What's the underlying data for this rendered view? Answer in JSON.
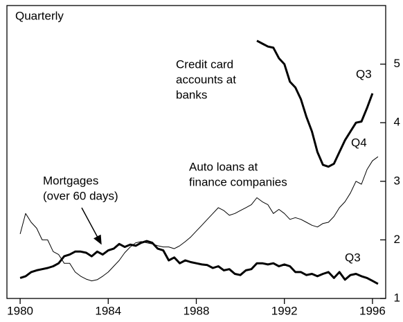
{
  "chart_data": {
    "type": "line",
    "annotations": [
      {
        "lines": [
          "Quarterly"
        ]
      },
      {
        "lines": [
          "Credit card",
          "accounts at",
          "banks"
        ]
      },
      {
        "lines": [
          "Q3"
        ]
      },
      {
        "lines": [
          "Auto loans at",
          "finance companies"
        ]
      },
      {
        "lines": [
          "Q4"
        ]
      },
      {
        "lines": [
          "Mortgages",
          "(over 60 days)"
        ]
      },
      {
        "lines": [
          "Q3"
        ]
      }
    ],
    "xlim": [
      1979.4,
      1996.6
    ],
    "xticks": [
      1980,
      1984,
      1988,
      1992,
      1996
    ],
    "ylim": [
      1,
      6
    ],
    "yticks": [
      1,
      2,
      3,
      4,
      5
    ],
    "series": [
      {
        "color": "#000000",
        "width": 3,
        "x": [
          1990.75,
          1991,
          1991.25,
          1991.5,
          1991.75,
          1992,
          1992.25,
          1992.5,
          1992.75,
          1993,
          1993.25,
          1993.5,
          1993.75,
          1994,
          1994.25,
          1994.5,
          1994.75,
          1995,
          1995.25,
          1995.5,
          1995.75,
          1996
        ],
        "values": [
          5.4,
          5.35,
          5.3,
          5.28,
          5.1,
          5.0,
          4.7,
          4.6,
          4.4,
          4.1,
          3.85,
          3.5,
          3.28,
          3.25,
          3.3,
          3.5,
          3.7,
          3.85,
          4.0,
          4.02,
          4.25,
          4.5
        ]
      },
      {
        "color": "#000000",
        "width": 1,
        "x": [
          1980,
          1980.25,
          1980.5,
          1980.75,
          1981,
          1981.25,
          1981.5,
          1981.75,
          1982,
          1982.25,
          1982.5,
          1982.75,
          1983,
          1983.25,
          1983.5,
          1983.75,
          1984,
          1984.25,
          1984.5,
          1984.75,
          1985,
          1985.25,
          1985.5,
          1985.75,
          1986,
          1986.25,
          1986.5,
          1986.75,
          1987,
          1987.25,
          1987.5,
          1987.75,
          1988,
          1988.25,
          1988.5,
          1988.75,
          1989,
          1989.25,
          1989.5,
          1989.75,
          1990,
          1990.25,
          1990.5,
          1990.75,
          1991,
          1991.25,
          1991.5,
          1991.75,
          1992,
          1992.25,
          1992.5,
          1992.75,
          1993,
          1993.25,
          1993.5,
          1993.75,
          1994,
          1994.25,
          1994.5,
          1994.75,
          1995,
          1995.25,
          1995.5,
          1995.75,
          1996,
          1996.25
        ],
        "values": [
          2.1,
          2.45,
          2.3,
          2.2,
          2.0,
          2.0,
          1.8,
          1.75,
          1.6,
          1.6,
          1.45,
          1.38,
          1.33,
          1.3,
          1.32,
          1.38,
          1.45,
          1.55,
          1.65,
          1.78,
          1.88,
          1.95,
          1.97,
          1.95,
          1.93,
          1.9,
          1.88,
          1.88,
          1.85,
          1.9,
          1.97,
          2.05,
          2.15,
          2.25,
          2.35,
          2.45,
          2.55,
          2.5,
          2.42,
          2.45,
          2.5,
          2.55,
          2.6,
          2.72,
          2.65,
          2.6,
          2.45,
          2.52,
          2.45,
          2.35,
          2.38,
          2.35,
          2.3,
          2.25,
          2.22,
          2.28,
          2.3,
          2.4,
          2.55,
          2.65,
          2.8,
          3.0,
          2.95,
          3.2,
          3.35,
          3.42
        ]
      },
      {
        "color": "#000000",
        "width": 3,
        "x": [
          1980,
          1980.25,
          1980.5,
          1980.75,
          1981,
          1981.25,
          1981.5,
          1981.75,
          1982,
          1982.25,
          1982.5,
          1982.75,
          1983,
          1983.25,
          1983.5,
          1983.75,
          1984,
          1984.25,
          1984.5,
          1984.75,
          1985,
          1985.25,
          1985.5,
          1985.75,
          1986,
          1986.25,
          1986.5,
          1986.75,
          1987,
          1987.25,
          1987.5,
          1987.75,
          1988,
          1988.25,
          1988.5,
          1988.75,
          1989,
          1989.25,
          1989.5,
          1989.75,
          1990,
          1990.25,
          1990.5,
          1990.75,
          1991,
          1991.25,
          1991.5,
          1991.75,
          1992,
          1992.25,
          1992.5,
          1992.75,
          1993,
          1993.25,
          1993.5,
          1993.75,
          1994,
          1994.25,
          1994.5,
          1994.75,
          1995,
          1995.25,
          1995.5,
          1995.75,
          1996,
          1996.25
        ],
        "values": [
          1.35,
          1.38,
          1.45,
          1.48,
          1.5,
          1.52,
          1.55,
          1.6,
          1.72,
          1.75,
          1.8,
          1.8,
          1.78,
          1.72,
          1.8,
          1.75,
          1.82,
          1.85,
          1.93,
          1.88,
          1.92,
          1.9,
          1.95,
          1.98,
          1.95,
          1.85,
          1.82,
          1.65,
          1.7,
          1.6,
          1.65,
          1.62,
          1.6,
          1.58,
          1.57,
          1.52,
          1.55,
          1.48,
          1.5,
          1.42,
          1.4,
          1.48,
          1.5,
          1.6,
          1.6,
          1.58,
          1.6,
          1.55,
          1.58,
          1.55,
          1.45,
          1.45,
          1.4,
          1.42,
          1.38,
          1.42,
          1.45,
          1.35,
          1.45,
          1.32,
          1.4,
          1.42,
          1.38,
          1.35,
          1.3,
          1.25
        ]
      }
    ]
  }
}
